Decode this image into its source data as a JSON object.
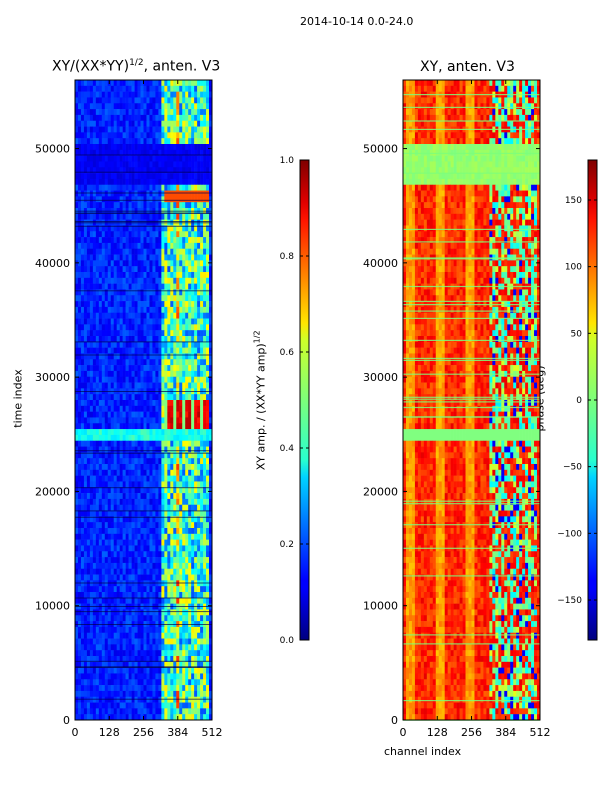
{
  "suptitle": "2014-10-14 0.0-24.0",
  "chart_data": [
    {
      "type": "heatmap",
      "title_main": "XY/(XX*YY)",
      "title_sup": "1/2",
      "title_tail": ", anten. V3",
      "xlabel": "",
      "ylabel": "time index",
      "xlim": [
        0,
        512
      ],
      "ylim": [
        0,
        56000
      ],
      "xticks": [
        0,
        128,
        256,
        384,
        512
      ],
      "yticks": [
        0,
        10000,
        20000,
        30000,
        40000,
        50000
      ],
      "colormap": "jet",
      "colorbar": {
        "label_main": "XY amp. / (XX*YY amp)",
        "label_sup": "1/2",
        "range": [
          0.0,
          1.0
        ],
        "ticks": [
          "0.0",
          "0.2",
          "0.4",
          "0.6",
          "0.8",
          "1.0"
        ]
      }
    },
    {
      "type": "heatmap",
      "title": "XY, anten. V3",
      "xlabel": "channel index",
      "ylabel": "",
      "xlim": [
        0,
        512
      ],
      "ylim": [
        0,
        56000
      ],
      "xticks": [
        0,
        128,
        256,
        384,
        512
      ],
      "yticks": [
        0,
        10000,
        20000,
        30000,
        40000,
        50000
      ],
      "colormap": "jet",
      "colorbar": {
        "label": "phase (deg)",
        "range": [
          -180,
          180
        ],
        "ticks": [
          "−150",
          "−100",
          "−50",
          "0",
          "50",
          "100",
          "150"
        ]
      }
    }
  ]
}
